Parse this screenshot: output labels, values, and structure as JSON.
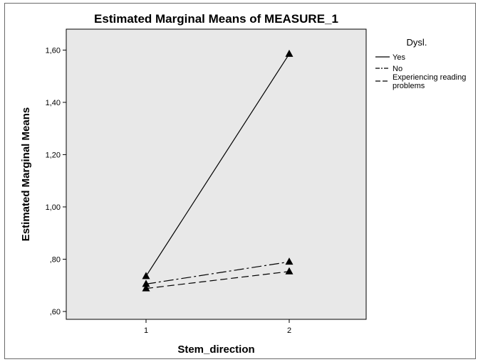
{
  "chart_data": {
    "type": "line",
    "title": "Estimated Marginal Means of MEASURE_1",
    "xlabel": "Stem_direction",
    "ylabel": "Estimated Marginal Means",
    "categories": [
      "1",
      "2"
    ],
    "ylim": [
      0.57,
      1.68
    ],
    "y_ticks": [
      0.6,
      0.8,
      1.0,
      1.2,
      1.4,
      1.6
    ],
    "y_tick_labels": [
      ",60",
      ",80",
      "1,00",
      "1,20",
      "1,40",
      "1,60"
    ],
    "grid": false,
    "legend": {
      "title": "Dysl.",
      "placement": "right"
    },
    "series": [
      {
        "name": "Yes",
        "values": [
          0.735,
          1.585
        ],
        "line_style": "solid",
        "marker": "triangle"
      },
      {
        "name": "No",
        "values": [
          0.705,
          0.79
        ],
        "line_style": "dash-dot",
        "marker": "triangle"
      },
      {
        "name": "Experiencing reading problems",
        "values": [
          0.688,
          0.753
        ],
        "line_style": "dashed",
        "marker": "triangle"
      }
    ],
    "colors": {
      "plot_background": "#e8e8e8",
      "line": "#000000",
      "axis": "#000000"
    }
  }
}
